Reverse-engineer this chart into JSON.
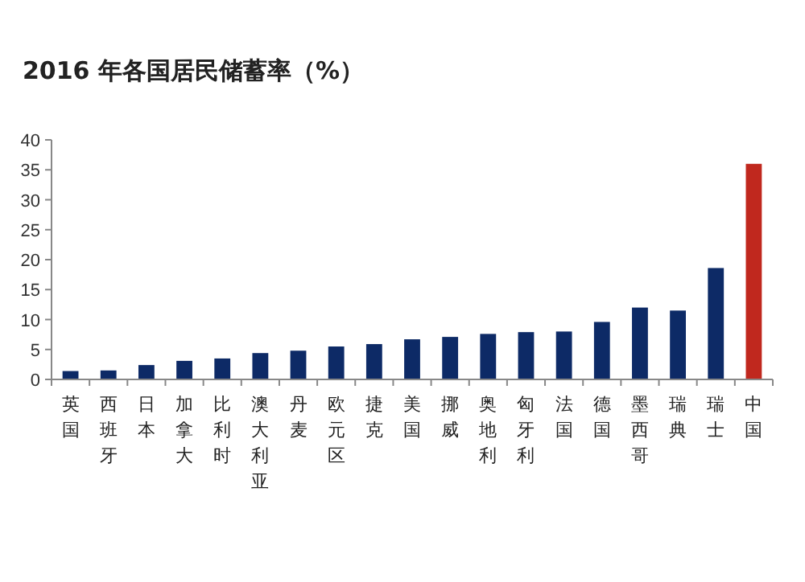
{
  "chart_data": {
    "type": "bar",
    "title": "2016 年各国居民储蓄率（%）",
    "categories": [
      "英国",
      "西班牙",
      "日本",
      "加拿大",
      "比利时",
      "澳大利亚",
      "丹麦",
      "欧元区",
      "捷克",
      "美国",
      "挪威",
      "奥地利",
      "匈牙利",
      "法国",
      "德国",
      "墨西哥",
      "瑞典",
      "瑞士",
      "中国"
    ],
    "values": [
      1.4,
      1.5,
      2.4,
      3.1,
      3.5,
      4.4,
      4.8,
      5.5,
      5.9,
      6.7,
      7.1,
      7.6,
      7.9,
      8.0,
      9.6,
      12,
      11.5,
      18.6,
      36.0
    ],
    "colors": [
      "#0d2a66",
      "#0d2a66",
      "#0d2a66",
      "#0d2a66",
      "#0d2a66",
      "#0d2a66",
      "#0d2a66",
      "#0d2a66",
      "#0d2a66",
      "#0d2a66",
      "#0d2a66",
      "#0d2a66",
      "#0d2a66",
      "#0d2a66",
      "#0d2a66",
      "#0d2a66",
      "#0d2a66",
      "#0d2a66",
      "#c0281e"
    ],
    "ylim": [
      0,
      40
    ],
    "yticks": [
      0,
      5,
      10,
      15,
      20,
      25,
      30,
      35,
      40
    ]
  }
}
